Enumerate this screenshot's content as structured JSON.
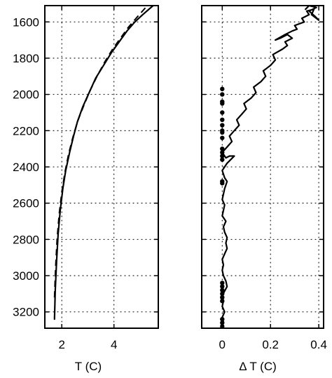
{
  "chart_data": [
    {
      "type": "line",
      "xlabel": "T (C)",
      "ylabel": "",
      "xlim": [
        1.35,
        5.7
      ],
      "ylim": [
        1510,
        3290
      ],
      "y_inverted": true,
      "grid": true,
      "x_ticks": [
        2,
        4
      ],
      "y_ticks": [
        1600,
        1800,
        2000,
        2200,
        2400,
        2600,
        2800,
        3000,
        3200
      ],
      "series": [
        {
          "style": "solid",
          "x": [
            1.72,
            1.75,
            1.8,
            1.86,
            1.94,
            2.04,
            2.15,
            2.3,
            2.45,
            2.6,
            2.8,
            3.05,
            3.3,
            3.6,
            3.9,
            4.2,
            4.5,
            4.8,
            5.1,
            5.5
          ],
          "y": [
            3240,
            3080,
            2920,
            2770,
            2640,
            2520,
            2420,
            2320,
            2230,
            2150,
            2070,
            1990,
            1910,
            1840,
            1770,
            1710,
            1650,
            1600,
            1560,
            1510
          ]
        },
        {
          "style": "dashed",
          "x": [
            1.72,
            1.76,
            1.82,
            1.9,
            2.0,
            2.12,
            2.26,
            2.42,
            2.6,
            2.82,
            3.08,
            3.35,
            3.65,
            3.95,
            4.25,
            4.55,
            4.85,
            5.25
          ],
          "y": [
            3120,
            2960,
            2800,
            2660,
            2540,
            2430,
            2330,
            2240,
            2150,
            2070,
            1980,
            1900,
            1820,
            1750,
            1690,
            1630,
            1580,
            1515
          ]
        }
      ]
    },
    {
      "type": "line",
      "xlabel": "Δ T (C)",
      "ylabel": "",
      "xlim": [
        -0.085,
        0.42
      ],
      "ylim": [
        1510,
        3290
      ],
      "y_inverted": true,
      "grid": true,
      "x_ticks": [
        0,
        0.2,
        0.4
      ],
      "x_tick_labels": [
        "0",
        "0.2",
        "0.4"
      ],
      "y_ticks": [
        1600,
        1800,
        2000,
        2200,
        2400,
        2600,
        2800,
        3000,
        3200
      ],
      "series": [
        {
          "style": "solid",
          "x": [
            0.0,
            0.005,
            0.0,
            0.01,
            0.0,
            0.005,
            0.0,
            0.01,
            0.02,
            0.015,
            0.005,
            0.0,
            0.005,
            0.0,
            0.01,
            0.02,
            0.015,
            0.02,
            0.01,
            0.005,
            0.015,
            0.0,
            0.005,
            0.01,
            0.0,
            0.005,
            0.01,
            0.015,
            0.02,
            0.01,
            0.005,
            0.0,
            0.01,
            0.02,
            0.035,
            0.05,
            0.03,
            0.015,
            0.0,
            0.02,
            0.04,
            0.03,
            0.05,
            0.07,
            0.06,
            0.08,
            0.1,
            0.09,
            0.12,
            0.14,
            0.13,
            0.16,
            0.18,
            0.17,
            0.2,
            0.22,
            0.21,
            0.25,
            0.27,
            0.26,
            0.29,
            0.27,
            0.24,
            0.22,
            0.26,
            0.29,
            0.31,
            0.3,
            0.34,
            0.33,
            0.36,
            0.35,
            0.38,
            0.37,
            0.4,
            0.385,
            0.36,
            0.39,
            0.36,
            0.345
          ],
          "y": [
            3280,
            3255,
            3230,
            3200,
            3170,
            3140,
            3110,
            3085,
            3060,
            3030,
            3000,
            2970,
            2940,
            2910,
            2880,
            2850,
            2820,
            2790,
            2760,
            2730,
            2700,
            2670,
            2640,
            2610,
            2580,
            2550,
            2520,
            2500,
            2480,
            2460,
            2440,
            2420,
            2400,
            2380,
            2360,
            2340,
            2340,
            2350,
            2320,
            2290,
            2260,
            2230,
            2200,
            2170,
            2140,
            2110,
            2080,
            2050,
            2020,
            1990,
            1960,
            1930,
            1900,
            1870,
            1840,
            1810,
            1780,
            1750,
            1730,
            1710,
            1690,
            1670,
            1690,
            1700,
            1670,
            1650,
            1640,
            1620,
            1600,
            1580,
            1560,
            1540,
            1530,
            1560,
            1590,
            1570,
            1540,
            1520,
            1510,
            1530
          ]
        }
      ],
      "markers": {
        "x": [
          0,
          0,
          0,
          0,
          0,
          0,
          0,
          0,
          0,
          0,
          0,
          0,
          0,
          0,
          0,
          0,
          0,
          0,
          0,
          0,
          0,
          0,
          0,
          0,
          0
        ],
        "y": [
          1970,
          2000,
          2040,
          2050,
          2100,
          2140,
          2170,
          2200,
          2210,
          2240,
          2300,
          2320,
          2340,
          2360,
          2480,
          2490,
          3040,
          3060,
          3080,
          3100,
          3120,
          3140,
          3240,
          3260,
          3280
        ]
      }
    }
  ]
}
